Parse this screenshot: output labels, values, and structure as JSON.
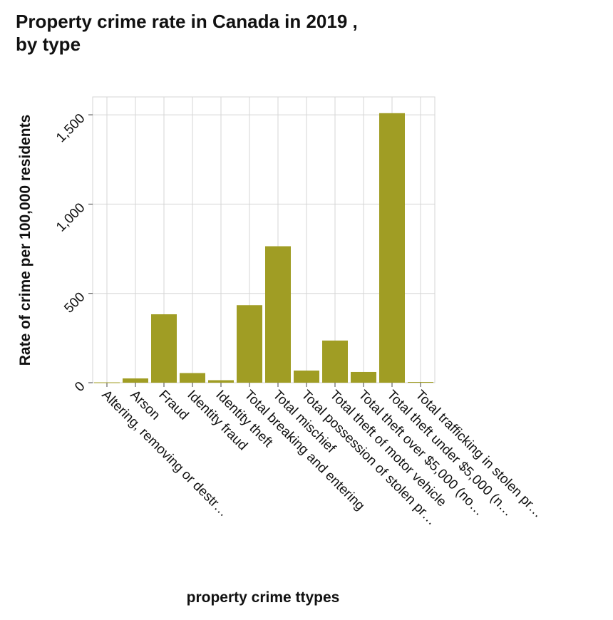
{
  "chart_data": {
    "type": "bar",
    "title": "Property crime rate in Canada in 2019 ,\nby type",
    "xlabel": "property crime ttypes",
    "ylabel": "Rate of crime per 100,000 residents",
    "categories": [
      "Altering, removing or destr…",
      "Arson",
      "Fraud",
      "Identity fraud",
      "Identity theft",
      "Total breaking and entering",
      "Total mischief",
      "Total possession of stolen pr…",
      "Total theft of motor vehicle",
      "Total theft over $5,000 (no…",
      "Total theft under $5,000 (n…",
      "Total trafficking in stolen pr…"
    ],
    "values": [
      2,
      24,
      383,
      54,
      14,
      434,
      764,
      68,
      236,
      60,
      1509,
      4
    ],
    "ylim": [
      0,
      1600
    ],
    "yticks": [
      0,
      500,
      1000,
      1500
    ],
    "ytick_labels": [
      "0",
      "500",
      "1,000",
      "1,500"
    ],
    "grid": true,
    "bar_color": "#a09d24",
    "grid_color": "#d6d6d6"
  }
}
